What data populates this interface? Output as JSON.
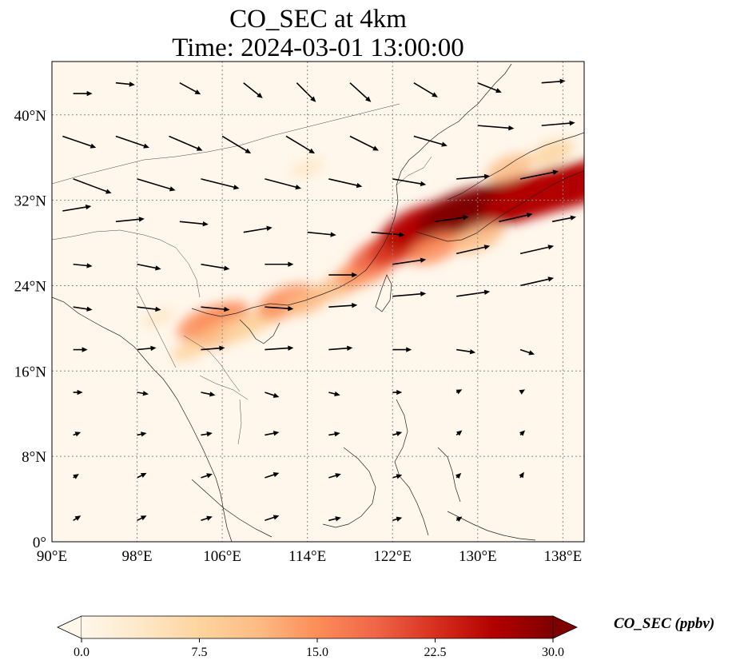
{
  "chart_data": {
    "type": "heatmap",
    "title": "CO_SEC at 4km",
    "subtitle": "Time: 2024-03-01 13:00:00",
    "x_ticks": [
      "90°E",
      "98°E",
      "106°E",
      "114°E",
      "122°E",
      "130°E",
      "138°E"
    ],
    "x_tick_values": [
      90,
      98,
      106,
      114,
      122,
      130,
      138
    ],
    "y_ticks": [
      "0°",
      "8°N",
      "16°N",
      "24°N",
      "32°N",
      "40°N"
    ],
    "y_tick_values": [
      0,
      8,
      16,
      24,
      32,
      40
    ],
    "xlim": [
      90,
      140
    ],
    "ylim": [
      0,
      45
    ],
    "grid": true,
    "colorbar": {
      "label": "CO_SEC (ppbv)",
      "ticks": [
        "0.0",
        "7.5",
        "15.0",
        "22.5",
        "30.0"
      ],
      "tick_values": [
        0,
        7.5,
        15,
        22.5,
        30
      ],
      "range": [
        0,
        30
      ],
      "colormap": "OrRd",
      "extend": "both"
    },
    "colors": [
      "#fff7ec",
      "#fee8c8",
      "#fdd49e",
      "#fdbb84",
      "#fc8d59",
      "#ef6548",
      "#d7301f",
      "#b30000",
      "#7f0000"
    ],
    "plume": [
      {
        "lon": 103.0,
        "lat": 18.0,
        "val": 6
      },
      {
        "lon": 104.5,
        "lat": 20.5,
        "val": 16
      },
      {
        "lon": 106.0,
        "lat": 21.0,
        "val": 14
      },
      {
        "lon": 106.0,
        "lat": 19.5,
        "val": 12
      },
      {
        "lon": 108.0,
        "lat": 20.0,
        "val": 9
      },
      {
        "lon": 110.0,
        "lat": 21.0,
        "val": 8
      },
      {
        "lon": 112.0,
        "lat": 22.5,
        "val": 16
      },
      {
        "lon": 114.0,
        "lat": 22.5,
        "val": 10
      },
      {
        "lon": 117.0,
        "lat": 24.0,
        "val": 11
      },
      {
        "lon": 119.5,
        "lat": 25.5,
        "val": 16
      },
      {
        "lon": 121.0,
        "lat": 27.0,
        "val": 18
      },
      {
        "lon": 123.0,
        "lat": 28.0,
        "val": 22
      },
      {
        "lon": 124.5,
        "lat": 29.5,
        "val": 25
      },
      {
        "lon": 126.5,
        "lat": 30.0,
        "val": 28
      },
      {
        "lon": 128.5,
        "lat": 30.8,
        "val": 29
      },
      {
        "lon": 130.5,
        "lat": 31.2,
        "val": 29
      },
      {
        "lon": 132.5,
        "lat": 31.8,
        "val": 29
      },
      {
        "lon": 134.5,
        "lat": 32.2,
        "val": 28
      },
      {
        "lon": 136.5,
        "lat": 32.8,
        "val": 28
      },
      {
        "lon": 138.5,
        "lat": 33.3,
        "val": 27
      },
      {
        "lon": 139.8,
        "lat": 33.6,
        "val": 26
      },
      {
        "lon": 133.0,
        "lat": 35.0,
        "val": 11
      },
      {
        "lon": 137.0,
        "lat": 36.5,
        "val": 9
      },
      {
        "lon": 126.0,
        "lat": 27.5,
        "val": 14
      },
      {
        "lon": 130.0,
        "lat": 28.5,
        "val": 13
      },
      {
        "lon": 114.0,
        "lat": 35.0,
        "val": 4
      },
      {
        "lon": 100.0,
        "lat": 21.0,
        "val": 4
      }
    ],
    "wind_units": "degrees/arrow-scale",
    "winds": [
      {
        "lon": 92,
        "lat": 42,
        "u": 2.0,
        "v": 0.0
      },
      {
        "lon": 96,
        "lat": 43,
        "u": 2.0,
        "v": -0.2
      },
      {
        "lon": 102,
        "lat": 43,
        "u": 2.2,
        "v": -1.2
      },
      {
        "lon": 108,
        "lat": 43,
        "u": 2.0,
        "v": -1.6
      },
      {
        "lon": 113,
        "lat": 43,
        "u": 2.0,
        "v": -2.0
      },
      {
        "lon": 118,
        "lat": 43,
        "u": 2.2,
        "v": -2.0
      },
      {
        "lon": 124,
        "lat": 43,
        "u": 2.5,
        "v": -1.5
      },
      {
        "lon": 130,
        "lat": 43,
        "u": 2.5,
        "v": -1.0
      },
      {
        "lon": 136,
        "lat": 43,
        "u": 2.5,
        "v": 0.2
      },
      {
        "lon": 91,
        "lat": 38,
        "u": 3.5,
        "v": -1.2
      },
      {
        "lon": 96,
        "lat": 38,
        "u": 3.5,
        "v": -1.2
      },
      {
        "lon": 101,
        "lat": 38,
        "u": 3.5,
        "v": -1.5
      },
      {
        "lon": 106,
        "lat": 38,
        "u": 3.0,
        "v": -1.8
      },
      {
        "lon": 112,
        "lat": 38,
        "u": 3.0,
        "v": -1.8
      },
      {
        "lon": 118,
        "lat": 38,
        "u": 3.0,
        "v": -1.5
      },
      {
        "lon": 124,
        "lat": 38,
        "u": 3.5,
        "v": -1.0
      },
      {
        "lon": 130,
        "lat": 39,
        "u": 3.8,
        "v": -0.3
      },
      {
        "lon": 136,
        "lat": 39,
        "u": 3.5,
        "v": 0.3
      },
      {
        "lon": 92,
        "lat": 34,
        "u": 4.0,
        "v": -1.5
      },
      {
        "lon": 98,
        "lat": 34,
        "u": 4.0,
        "v": -1.2
      },
      {
        "lon": 104,
        "lat": 34,
        "u": 4.0,
        "v": -1.0
      },
      {
        "lon": 110,
        "lat": 34,
        "u": 3.8,
        "v": -1.0
      },
      {
        "lon": 116,
        "lat": 34,
        "u": 3.5,
        "v": -0.8
      },
      {
        "lon": 122,
        "lat": 34,
        "u": 3.5,
        "v": -0.6
      },
      {
        "lon": 128,
        "lat": 34,
        "u": 3.5,
        "v": 0.3
      },
      {
        "lon": 134,
        "lat": 34,
        "u": 4.0,
        "v": 0.8
      },
      {
        "lon": 91,
        "lat": 31,
        "u": 3.0,
        "v": 0.5
      },
      {
        "lon": 96,
        "lat": 30,
        "u": 3.0,
        "v": 0.3
      },
      {
        "lon": 102,
        "lat": 30,
        "u": 3.0,
        "v": -0.3
      },
      {
        "lon": 108,
        "lat": 29,
        "u": 3.0,
        "v": 0.5
      },
      {
        "lon": 114,
        "lat": 29,
        "u": 3.0,
        "v": -0.3
      },
      {
        "lon": 120,
        "lat": 29,
        "u": 3.5,
        "v": -0.3
      },
      {
        "lon": 126,
        "lat": 30,
        "u": 3.5,
        "v": 0.5
      },
      {
        "lon": 132,
        "lat": 30,
        "u": 3.5,
        "v": 0.8
      },
      {
        "lon": 137,
        "lat": 30,
        "u": 2.5,
        "v": 0.5
      },
      {
        "lon": 92,
        "lat": 26,
        "u": 2.0,
        "v": -0.2
      },
      {
        "lon": 98,
        "lat": 26,
        "u": 2.5,
        "v": -0.5
      },
      {
        "lon": 104,
        "lat": 26,
        "u": 3.0,
        "v": -0.5
      },
      {
        "lon": 110,
        "lat": 26,
        "u": 3.0,
        "v": 0.0
      },
      {
        "lon": 116,
        "lat": 25,
        "u": 3.0,
        "v": 0.0
      },
      {
        "lon": 122,
        "lat": 26,
        "u": 3.5,
        "v": 0.5
      },
      {
        "lon": 128,
        "lat": 27,
        "u": 3.5,
        "v": 0.8
      },
      {
        "lon": 134,
        "lat": 27,
        "u": 3.5,
        "v": 0.8
      },
      {
        "lon": 92,
        "lat": 22,
        "u": 2.0,
        "v": -0.3
      },
      {
        "lon": 98,
        "lat": 22,
        "u": 2.5,
        "v": -0.3
      },
      {
        "lon": 104,
        "lat": 22,
        "u": 3.0,
        "v": -0.3
      },
      {
        "lon": 110,
        "lat": 22,
        "u": 3.0,
        "v": -0.2
      },
      {
        "lon": 116,
        "lat": 22,
        "u": 3.0,
        "v": 0.2
      },
      {
        "lon": 122,
        "lat": 23,
        "u": 3.5,
        "v": 0.3
      },
      {
        "lon": 128,
        "lat": 23,
        "u": 3.5,
        "v": 0.5
      },
      {
        "lon": 134,
        "lat": 24,
        "u": 3.5,
        "v": 0.8
      },
      {
        "lon": 92,
        "lat": 18,
        "u": 1.5,
        "v": 0.0
      },
      {
        "lon": 98,
        "lat": 18,
        "u": 2.0,
        "v": 0.2
      },
      {
        "lon": 104,
        "lat": 18,
        "u": 2.5,
        "v": 0.2
      },
      {
        "lon": 110,
        "lat": 18,
        "u": 3.0,
        "v": 0.2
      },
      {
        "lon": 116,
        "lat": 18,
        "u": 2.5,
        "v": 0.2
      },
      {
        "lon": 122,
        "lat": 18,
        "u": 2.0,
        "v": 0.0
      },
      {
        "lon": 128,
        "lat": 18,
        "u": 2.0,
        "v": -0.3
      },
      {
        "lon": 134,
        "lat": 18,
        "u": 1.5,
        "v": -0.5
      },
      {
        "lon": 92,
        "lat": 14,
        "u": 1.0,
        "v": 0.0
      },
      {
        "lon": 98,
        "lat": 14,
        "u": 1.2,
        "v": -0.2
      },
      {
        "lon": 104,
        "lat": 14,
        "u": 1.5,
        "v": -0.3
      },
      {
        "lon": 110,
        "lat": 14,
        "u": 1.5,
        "v": -0.5
      },
      {
        "lon": 116,
        "lat": 14,
        "u": 1.2,
        "v": -0.3
      },
      {
        "lon": 122,
        "lat": 14,
        "u": 1.0,
        "v": 0.0
      },
      {
        "lon": 128,
        "lat": 14,
        "u": 0.6,
        "v": 0.3
      },
      {
        "lon": 134,
        "lat": 14,
        "u": 0.5,
        "v": 0.3
      },
      {
        "lon": 92,
        "lat": 10,
        "u": 0.8,
        "v": 0.3
      },
      {
        "lon": 98,
        "lat": 10,
        "u": 1.0,
        "v": 0.2
      },
      {
        "lon": 104,
        "lat": 10,
        "u": 1.2,
        "v": 0.2
      },
      {
        "lon": 110,
        "lat": 10,
        "u": 1.5,
        "v": 0.3
      },
      {
        "lon": 116,
        "lat": 10,
        "u": 1.2,
        "v": 0.2
      },
      {
        "lon": 122,
        "lat": 10,
        "u": 1.0,
        "v": 0.3
      },
      {
        "lon": 128,
        "lat": 10,
        "u": 0.6,
        "v": 0.5
      },
      {
        "lon": 134,
        "lat": 10,
        "u": 0.5,
        "v": 0.5
      },
      {
        "lon": 92,
        "lat": 6,
        "u": 0.6,
        "v": 0.4
      },
      {
        "lon": 98,
        "lat": 6,
        "u": 1.0,
        "v": 0.5
      },
      {
        "lon": 104,
        "lat": 6,
        "u": 1.2,
        "v": 0.4
      },
      {
        "lon": 110,
        "lat": 6,
        "u": 1.5,
        "v": 0.5
      },
      {
        "lon": 116,
        "lat": 6,
        "u": 1.3,
        "v": 0.4
      },
      {
        "lon": 122,
        "lat": 6,
        "u": 1.0,
        "v": 0.3
      },
      {
        "lon": 128,
        "lat": 6,
        "u": 0.5,
        "v": 0.5
      },
      {
        "lon": 134,
        "lat": 6,
        "u": 0.4,
        "v": 0.6
      },
      {
        "lon": 92,
        "lat": 2,
        "u": 0.8,
        "v": 0.5
      },
      {
        "lon": 98,
        "lat": 2,
        "u": 1.0,
        "v": 0.5
      },
      {
        "lon": 104,
        "lat": 2,
        "u": 1.2,
        "v": 0.4
      },
      {
        "lon": 110,
        "lat": 2,
        "u": 1.5,
        "v": 0.5
      },
      {
        "lon": 116,
        "lat": 2,
        "u": 1.3,
        "v": 0.3
      },
      {
        "lon": 122,
        "lat": 2,
        "u": 1.0,
        "v": 0.3
      },
      {
        "lon": 128,
        "lat": 2,
        "u": 0.6,
        "v": 0.4
      }
    ]
  }
}
